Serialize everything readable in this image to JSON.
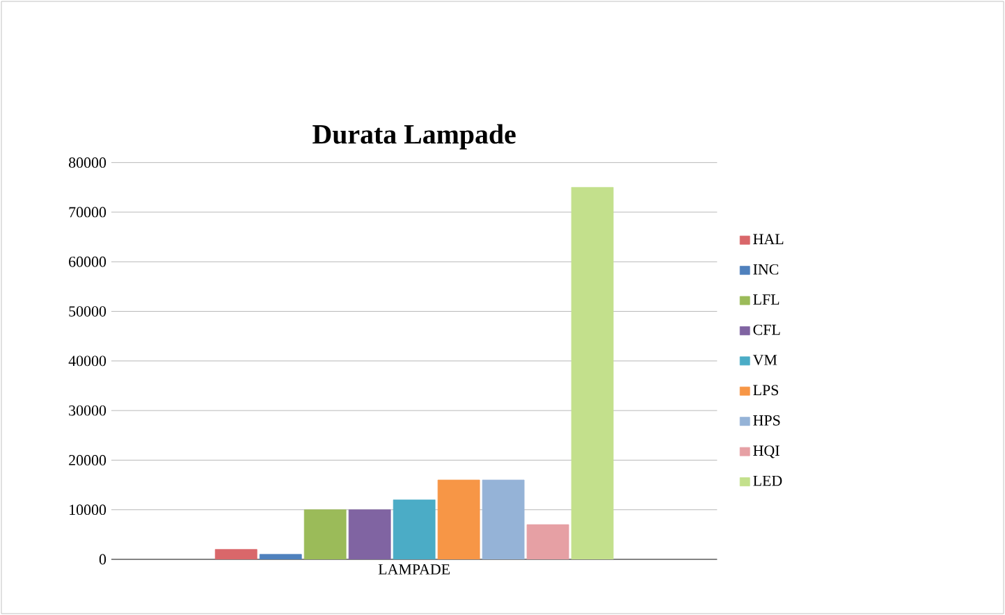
{
  "chart_data": {
    "type": "bar",
    "title": "Durata Lampade",
    "categories": [
      "LAMPADE"
    ],
    "series": [
      {
        "name": "HAL",
        "color": "#d9676a",
        "values": [
          2000
        ]
      },
      {
        "name": "INC",
        "color": "#4f81bd",
        "values": [
          1000
        ]
      },
      {
        "name": "LFL",
        "color": "#9bbb59",
        "values": [
          10000
        ]
      },
      {
        "name": "CFL",
        "color": "#8064a2",
        "values": [
          10000
        ]
      },
      {
        "name": "VM",
        "color": "#4bacc6",
        "values": [
          12000
        ]
      },
      {
        "name": "LPS",
        "color": "#f79646",
        "values": [
          16000
        ]
      },
      {
        "name": "HPS",
        "color": "#95b3d7",
        "values": [
          16000
        ]
      },
      {
        "name": "HQI",
        "color": "#e6a0a4",
        "values": [
          7000
        ]
      },
      {
        "name": "LED",
        "color": "#c3e08c",
        "values": [
          75000
        ]
      }
    ],
    "ylim": [
      0,
      80000
    ],
    "yticks": [
      0,
      10000,
      20000,
      30000,
      40000,
      50000,
      60000,
      70000,
      80000
    ],
    "grid": "y",
    "legend": "right"
  }
}
